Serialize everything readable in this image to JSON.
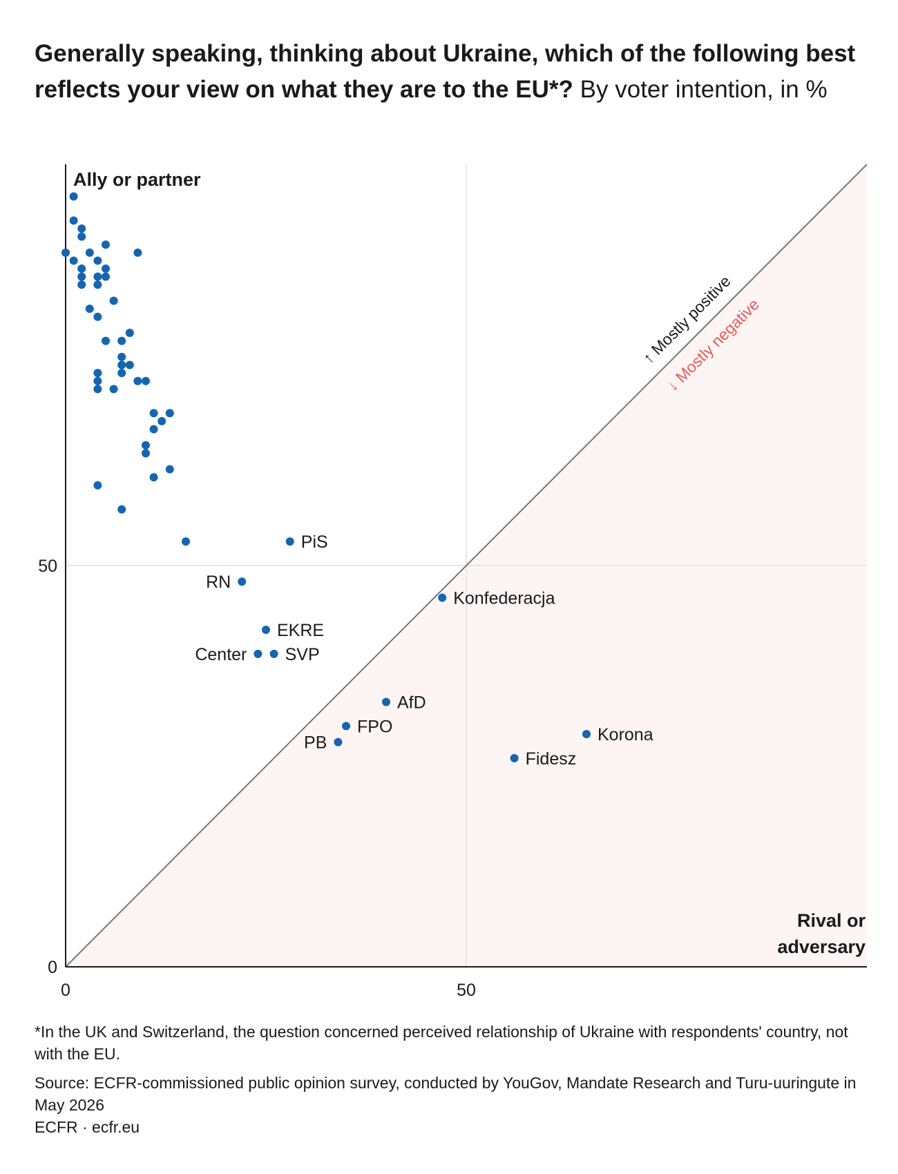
{
  "title": {
    "bold": "Generally speaking, thinking about Ukraine, which of the following best reflects your view on what they are to the EU*?",
    "normal": "By voter intention, in %"
  },
  "chart_data": {
    "type": "scatter",
    "xlim": [
      0,
      100
    ],
    "ylim": [
      0,
      100
    ],
    "x_ticks": [
      "0",
      "50"
    ],
    "y_ticks": [
      "0",
      "50"
    ],
    "y_axis_label": "Ally or partner",
    "x_axis_label_line1": "Rival or",
    "x_axis_label_line2": "adversary",
    "diagonal_label_positive": "↑ Mostly positive",
    "diagonal_label_negative": "↓ Mostly negative",
    "grid": true,
    "colors": {
      "point": "#1565b0",
      "negative_region": "#fdf5f4",
      "negative_text": "#e35b5b",
      "diagonal": "#777777",
      "grid": "#dddddd"
    },
    "labeled_points": [
      {
        "label": "PiS",
        "x": 28,
        "y": 53,
        "anchor": "right"
      },
      {
        "label": "RN",
        "x": 22,
        "y": 48,
        "anchor": "left"
      },
      {
        "label": "Konfederacja",
        "x": 47,
        "y": 46,
        "anchor": "right"
      },
      {
        "label": "EKRE",
        "x": 25,
        "y": 42,
        "anchor": "right"
      },
      {
        "label": "Center",
        "x": 24,
        "y": 39,
        "anchor": "left"
      },
      {
        "label": "SVP",
        "x": 26,
        "y": 39,
        "anchor": "right"
      },
      {
        "label": "AfD",
        "x": 40,
        "y": 33,
        "anchor": "right"
      },
      {
        "label": "FPO",
        "x": 35,
        "y": 30,
        "anchor": "right"
      },
      {
        "label": "PB",
        "x": 34,
        "y": 28,
        "anchor": "left"
      },
      {
        "label": "Korona",
        "x": 65,
        "y": 29,
        "anchor": "right"
      },
      {
        "label": "Fidesz",
        "x": 56,
        "y": 26,
        "anchor": "right"
      }
    ],
    "unlabeled_points": [
      [
        1,
        96
      ],
      [
        1,
        93
      ],
      [
        2,
        92
      ],
      [
        2,
        91
      ],
      [
        0,
        89
      ],
      [
        3,
        89
      ],
      [
        5,
        90
      ],
      [
        9,
        89
      ],
      [
        1,
        88
      ],
      [
        4,
        88
      ],
      [
        2,
        87
      ],
      [
        5,
        87
      ],
      [
        2,
        86
      ],
      [
        4,
        86
      ],
      [
        5,
        86
      ],
      [
        2,
        85
      ],
      [
        4,
        85
      ],
      [
        6,
        83
      ],
      [
        3,
        82
      ],
      [
        4,
        81
      ],
      [
        8,
        79
      ],
      [
        5,
        78
      ],
      [
        7,
        78
      ],
      [
        7,
        76
      ],
      [
        7,
        75
      ],
      [
        8,
        75
      ],
      [
        4,
        74
      ],
      [
        7,
        74
      ],
      [
        4,
        73
      ],
      [
        9,
        73
      ],
      [
        10,
        73
      ],
      [
        4,
        72
      ],
      [
        6,
        72
      ],
      [
        11,
        69
      ],
      [
        13,
        69
      ],
      [
        12,
        68
      ],
      [
        11,
        67
      ],
      [
        10,
        65
      ],
      [
        10,
        64
      ],
      [
        13,
        62
      ],
      [
        11,
        61
      ],
      [
        4,
        60
      ],
      [
        7,
        57
      ],
      [
        15,
        53
      ]
    ]
  },
  "footer": {
    "note": "*In the UK and Switzerland, the question concerned perceived relationship of Ukraine with respondents' country, not with the EU.",
    "source": "Source: ECFR-commissioned public opinion survey, conducted by YouGov, Mandate Research and Turu-uuringute in May 2026",
    "credit": "ECFR · ecfr.eu"
  }
}
